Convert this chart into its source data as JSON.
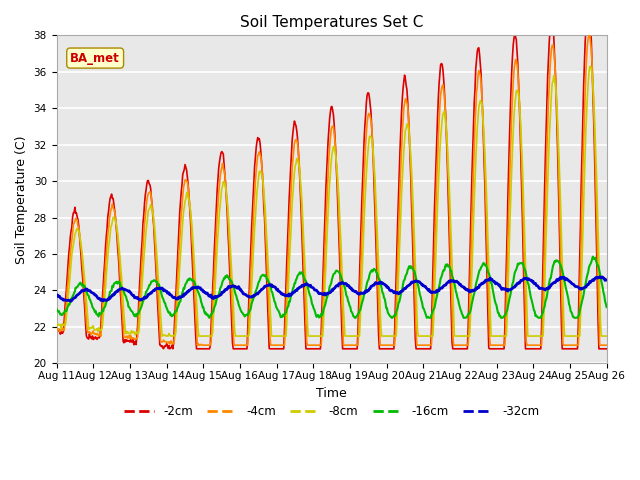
{
  "title": "Soil Temperatures Set C",
  "xlabel": "Time",
  "ylabel": "Soil Temperature (C)",
  "ylim": [
    20,
    38
  ],
  "yticks": [
    20,
    22,
    24,
    26,
    28,
    30,
    32,
    34,
    36,
    38
  ],
  "xtick_labels": [
    "Aug 11",
    "Aug 12",
    "Aug 13",
    "Aug 14",
    "Aug 15",
    "Aug 16",
    "Aug 17",
    "Aug 18",
    "Aug 19",
    "Aug 20",
    "Aug 21",
    "Aug 22",
    "Aug 23",
    "Aug 24",
    "Aug 25",
    "Aug 26"
  ],
  "line_colors": {
    "-2cm": "#dd0000",
    "-4cm": "#ff8800",
    "-8cm": "#cccc00",
    "-16cm": "#00bb00",
    "-32cm": "#0000cc"
  },
  "line_widths": {
    "-2cm": 1.2,
    "-4cm": 1.2,
    "-8cm": 1.2,
    "-16cm": 1.5,
    "-32cm": 2.0
  },
  "annotation_text": "BA_met",
  "annotation_bg": "#ffffcc",
  "annotation_edge": "#aa8800",
  "annotation_color": "#cc0000",
  "plot_bg_color": "#e8e8e8",
  "grid_color": "#ffffff",
  "title_fontsize": 11,
  "axis_fontsize": 9,
  "tick_fontsize": 7.5
}
